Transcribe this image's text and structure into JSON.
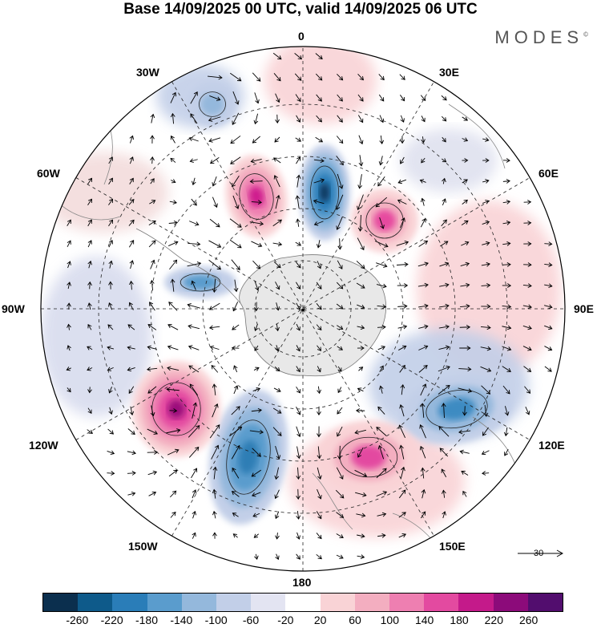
{
  "title": "Base 14/09/2025 00 UTC, valid 14/09/2025 06 UTC",
  "brand": "MODES",
  "brand_mark": "©",
  "map": {
    "projection": "south-polar-stereographic",
    "longitude_labels": {
      "lon_0": "0",
      "lon_30e": "30E",
      "lon_60e": "60E",
      "lon_90e": "90E",
      "lon_120e": "120E",
      "lon_150e": "150E",
      "lon_180": "180",
      "lon_150w": "150W",
      "lon_120w": "120W",
      "lon_90w": "90W",
      "lon_60w": "60W",
      "lon_30w": "30W"
    },
    "anomaly_centers": [
      {
        "name": "blue-a",
        "value": -260,
        "color": "#08395e"
      },
      {
        "name": "pink-a",
        "value": 200,
        "color": "#cf1a8e"
      },
      {
        "name": "pink-b",
        "value": 160,
        "color": "#e64a9f"
      },
      {
        "name": "blue-b",
        "value": -200,
        "color": "#2f7eb5"
      },
      {
        "name": "pink-c",
        "value": 260,
        "color": "#9b0b7c"
      },
      {
        "name": "blue-c",
        "value": -180,
        "color": "#3e8bc2"
      },
      {
        "name": "pink-d",
        "value": 180,
        "color": "#e34aa0"
      },
      {
        "name": "blue-d",
        "value": -120,
        "color": "#5a9ccd"
      },
      {
        "name": "blue-e",
        "value": -100,
        "color": "#94b8dc"
      }
    ]
  },
  "reference_vector": {
    "label": "30"
  },
  "colorbar": {
    "colors": [
      "#0b2f4e",
      "#0e5a8a",
      "#2a7db8",
      "#5a9ccd",
      "#94b8dc",
      "#c2cfe8",
      "#e3e4f2",
      "#ffffff",
      "#f9d3d6",
      "#f3aec0",
      "#ee7fb1",
      "#e34aa0",
      "#c41a8a",
      "#8c0b7a",
      "#520d6e"
    ],
    "ticks": [
      "-260",
      "-220",
      "-180",
      "-140",
      "-100",
      "-60",
      "-20",
      "20",
      "60",
      "100",
      "140",
      "180",
      "220",
      "260"
    ]
  }
}
